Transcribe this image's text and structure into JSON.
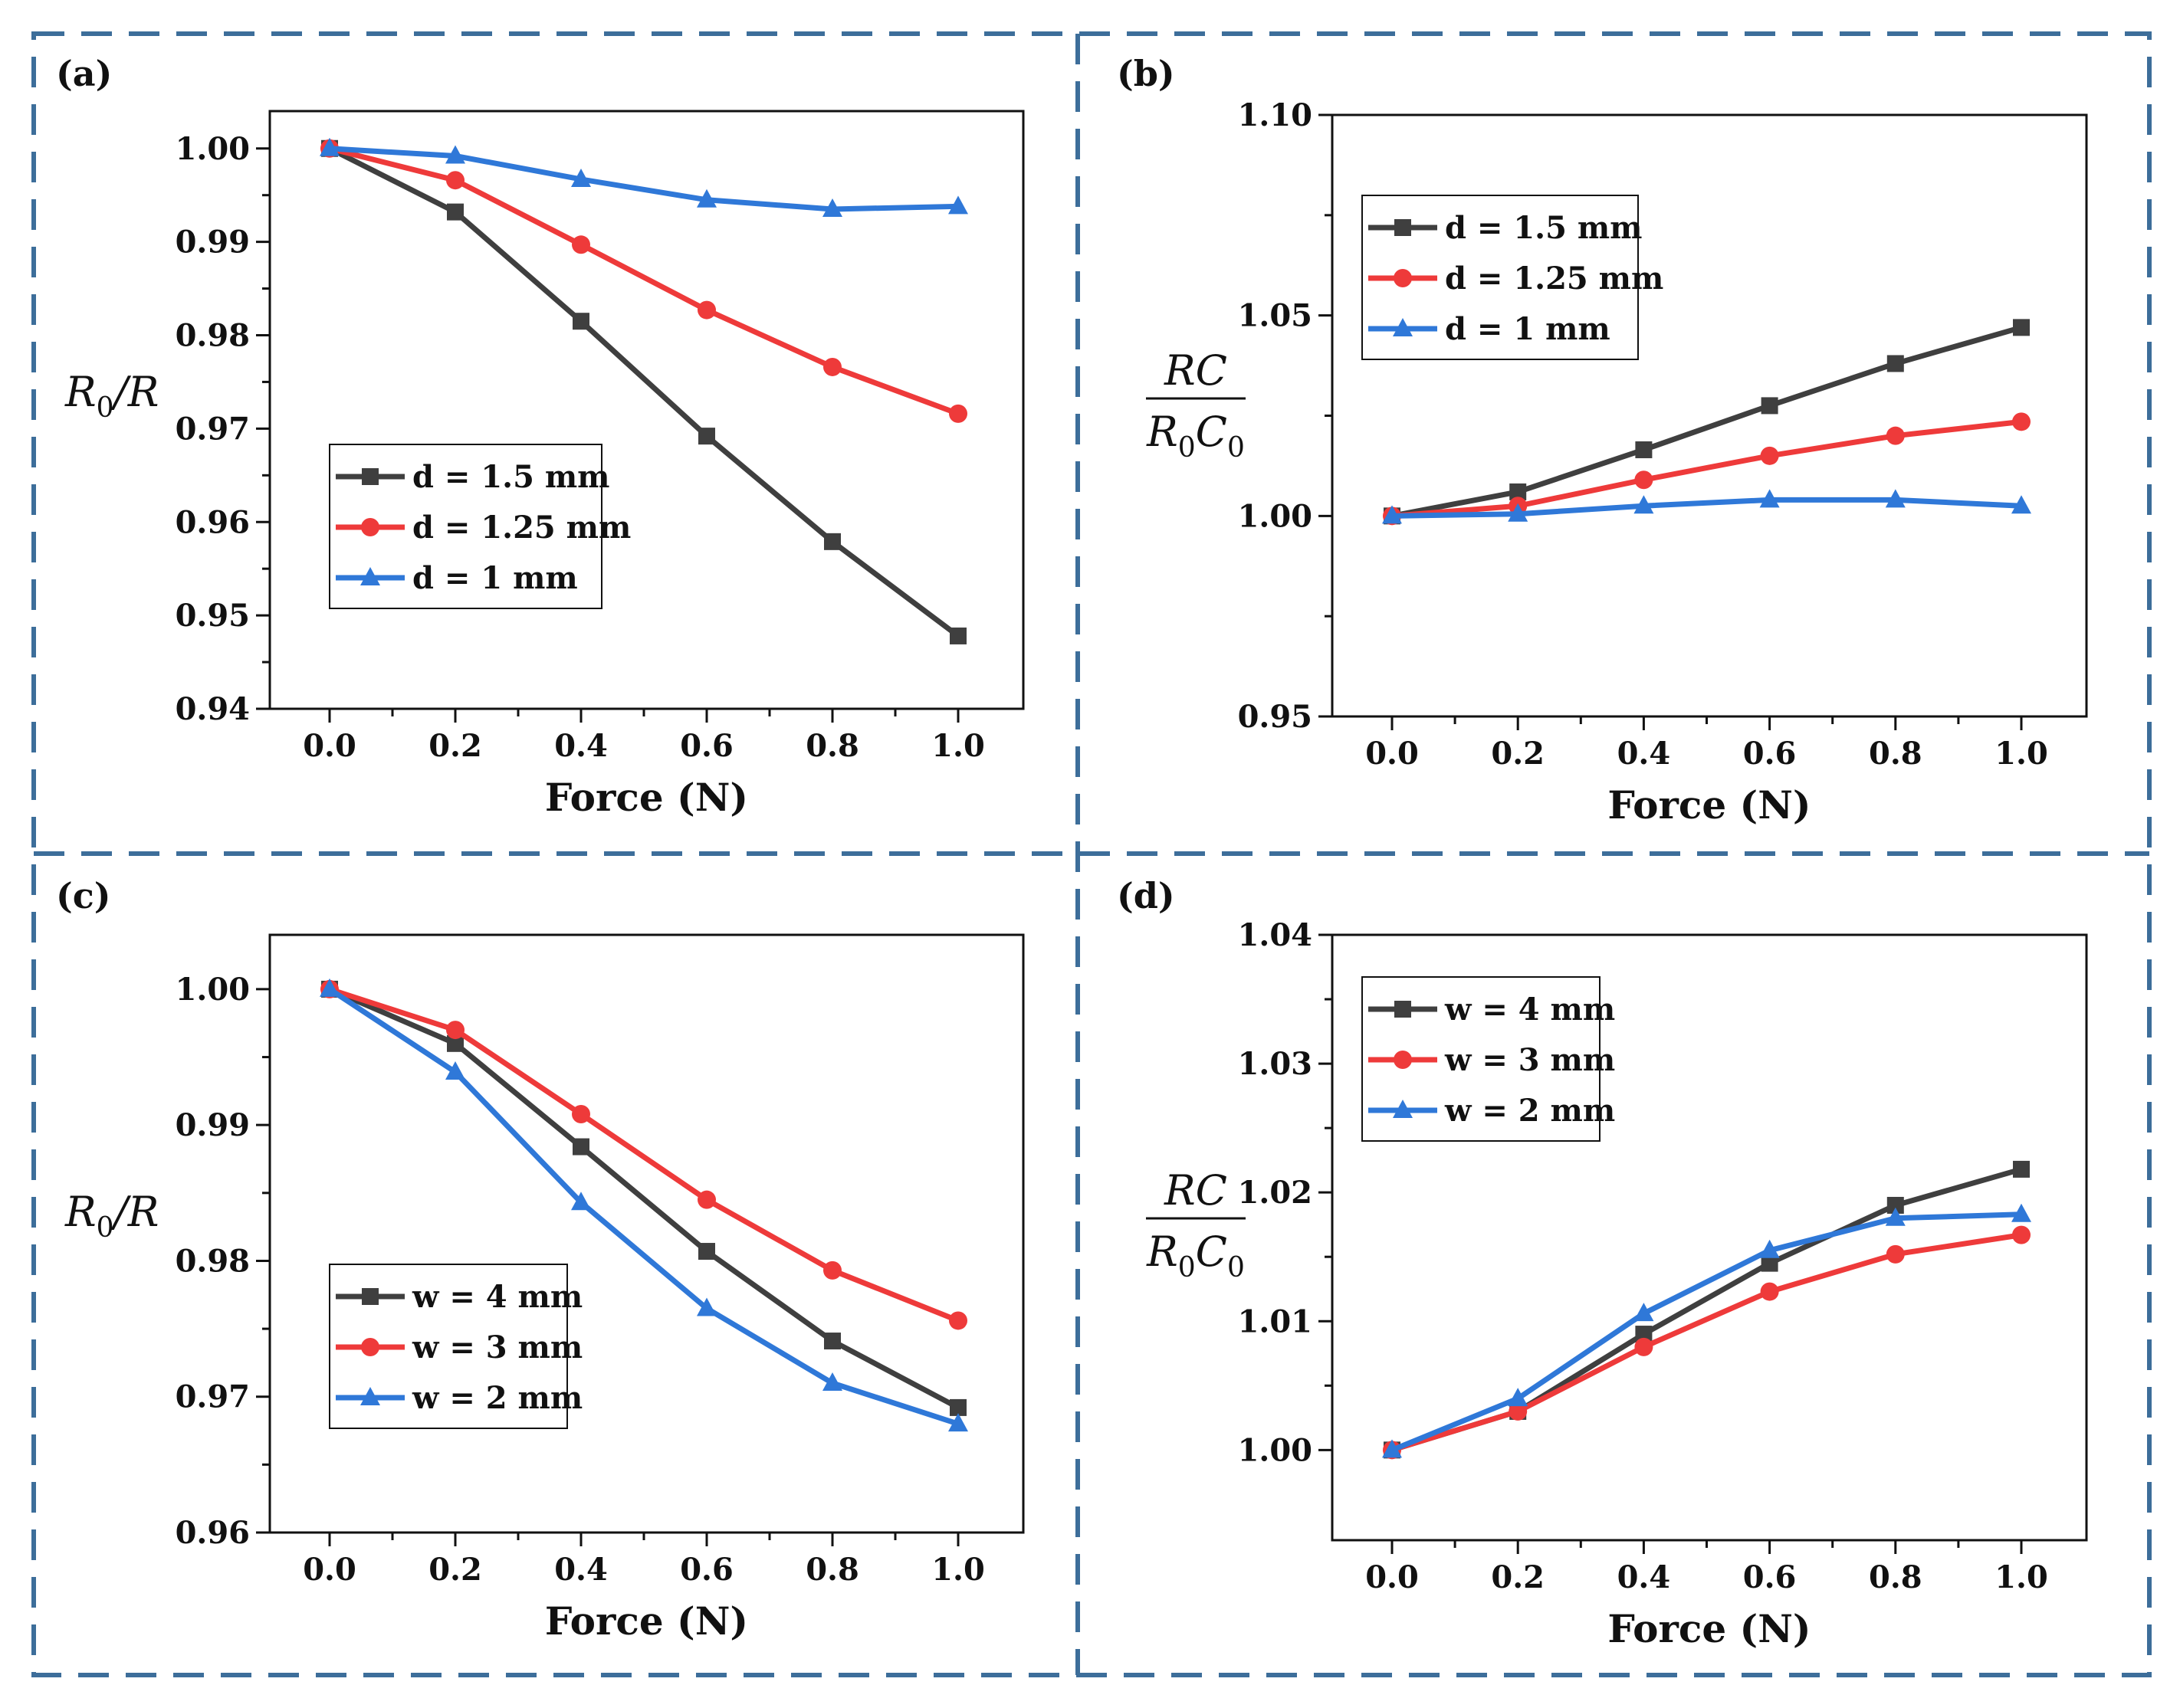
{
  "colors": {
    "frame": "#3d6e9a",
    "series": [
      "#3f3f3f",
      "#ee3a3a",
      "#2f78d8"
    ]
  },
  "x_title": "Force (N)",
  "ylabels": {
    "ratio_R": "R0/R",
    "ratio_RC": "RC/R0C0",
    "R": "R",
    "RC": "RC",
    "R0C0_R": "R",
    "R0C0_C": "C",
    "sub0": "0"
  },
  "chart_data": [
    {
      "id": "a",
      "panel_label": "(a)",
      "type": "line",
      "xlabel": "Force (N)",
      "ylabel": "R0/R",
      "xlim": [
        -0.1,
        1.1
      ],
      "ylim": [
        0.94,
        1.004
      ],
      "x": [
        0.0,
        0.2,
        0.4,
        0.6,
        0.8,
        1.0
      ],
      "x_tick_labels": [
        "0.0",
        "0.2",
        "0.4",
        "0.6",
        "0.8",
        "1.0"
      ],
      "y_ticks": [
        0.94,
        0.95,
        0.96,
        0.97,
        0.98,
        0.99,
        1.0
      ],
      "y_tick_labels": [
        "0.94",
        "0.95",
        "0.96",
        "0.97",
        "0.98",
        "0.99",
        "1.00"
      ],
      "legend_position": "center-left",
      "series": [
        {
          "name": "d = 1.5 mm",
          "marker": "square",
          "values": [
            1.0,
            0.9932,
            0.9815,
            0.9692,
            0.9579,
            0.9478
          ]
        },
        {
          "name": "d = 1.25 mm",
          "marker": "circle",
          "values": [
            1.0,
            0.9966,
            0.9897,
            0.9827,
            0.9766,
            0.9716
          ]
        },
        {
          "name": "d = 1 mm",
          "marker": "triangle",
          "values": [
            1.0,
            0.9992,
            0.9967,
            0.9945,
            0.9935,
            0.9938
          ]
        }
      ]
    },
    {
      "id": "b",
      "panel_label": "(b)",
      "type": "line",
      "xlabel": "Force (N)",
      "ylabel": "RC/R0C0",
      "xlim": [
        -0.1,
        1.1
      ],
      "ylim": [
        0.95,
        1.1
      ],
      "x": [
        0.0,
        0.2,
        0.4,
        0.6,
        0.8,
        1.0
      ],
      "x_tick_labels": [
        "0.0",
        "0.2",
        "0.4",
        "0.6",
        "0.8",
        "1.0"
      ],
      "y_ticks": [
        0.95,
        1.0,
        1.05,
        1.1
      ],
      "y_tick_labels": [
        "0.95",
        "1.00",
        "1.05",
        "1.10"
      ],
      "legend_position": "top-left",
      "series": [
        {
          "name": "d = 1.5 mm",
          "marker": "square",
          "values": [
            1.0,
            1.006,
            1.0165,
            1.0275,
            1.038,
            1.047
          ]
        },
        {
          "name": "d = 1.25 mm",
          "marker": "circle",
          "values": [
            1.0,
            1.0025,
            1.009,
            1.015,
            1.02,
            1.0235
          ]
        },
        {
          "name": "d = 1 mm",
          "marker": "triangle",
          "values": [
            1.0,
            1.0005,
            1.0025,
            1.004,
            1.004,
            1.0025
          ]
        }
      ]
    },
    {
      "id": "c",
      "panel_label": "(c)",
      "type": "line",
      "xlabel": "Force (N)",
      "ylabel": "R0/R",
      "xlim": [
        -0.1,
        1.1
      ],
      "ylim": [
        0.96,
        1.004
      ],
      "x": [
        0.0,
        0.2,
        0.4,
        0.6,
        0.8,
        1.0
      ],
      "x_tick_labels": [
        "0.0",
        "0.2",
        "0.4",
        "0.6",
        "0.8",
        "1.0"
      ],
      "y_ticks": [
        0.96,
        0.97,
        0.98,
        0.99,
        1.0
      ],
      "y_tick_labels": [
        "0.96",
        "0.97",
        "0.98",
        "0.99",
        "1.00"
      ],
      "legend_position": "bottom-left",
      "series": [
        {
          "name": "w = 4 mm",
          "marker": "square",
          "values": [
            1.0,
            0.996,
            0.9884,
            0.9807,
            0.9741,
            0.9692
          ]
        },
        {
          "name": "w = 3 mm",
          "marker": "circle",
          "values": [
            1.0,
            0.997,
            0.9908,
            0.9845,
            0.9793,
            0.9756
          ]
        },
        {
          "name": "w = 2 mm",
          "marker": "triangle",
          "values": [
            1.0,
            0.9939,
            0.9843,
            0.9765,
            0.971,
            0.968
          ]
        }
      ]
    },
    {
      "id": "d",
      "panel_label": "(d)",
      "type": "line",
      "xlabel": "Force (N)",
      "ylabel": "RC/R0C0",
      "xlim": [
        -0.1,
        1.1
      ],
      "ylim": [
        0.993,
        1.04
      ],
      "x": [
        0.0,
        0.2,
        0.4,
        0.6,
        0.8,
        1.0
      ],
      "x_tick_labels": [
        "0.0",
        "0.2",
        "0.4",
        "0.6",
        "0.8",
        "1.0"
      ],
      "y_ticks": [
        1.0,
        1.01,
        1.02,
        1.03,
        1.04
      ],
      "y_tick_labels": [
        "1.00",
        "1.01",
        "1.02",
        "1.03",
        "1.04"
      ],
      "legend_position": "top-left",
      "series": [
        {
          "name": "w = 4 mm",
          "marker": "square",
          "values": [
            1.0,
            1.003,
            1.009,
            1.0145,
            1.019,
            1.0218
          ]
        },
        {
          "name": "w = 3 mm",
          "marker": "circle",
          "values": [
            1.0,
            1.003,
            1.008,
            1.0123,
            1.0152,
            1.0167
          ]
        },
        {
          "name": "w = 2 mm",
          "marker": "triangle",
          "values": [
            1.0,
            1.004,
            1.0106,
            1.0155,
            1.018,
            1.0183
          ]
        }
      ]
    }
  ]
}
